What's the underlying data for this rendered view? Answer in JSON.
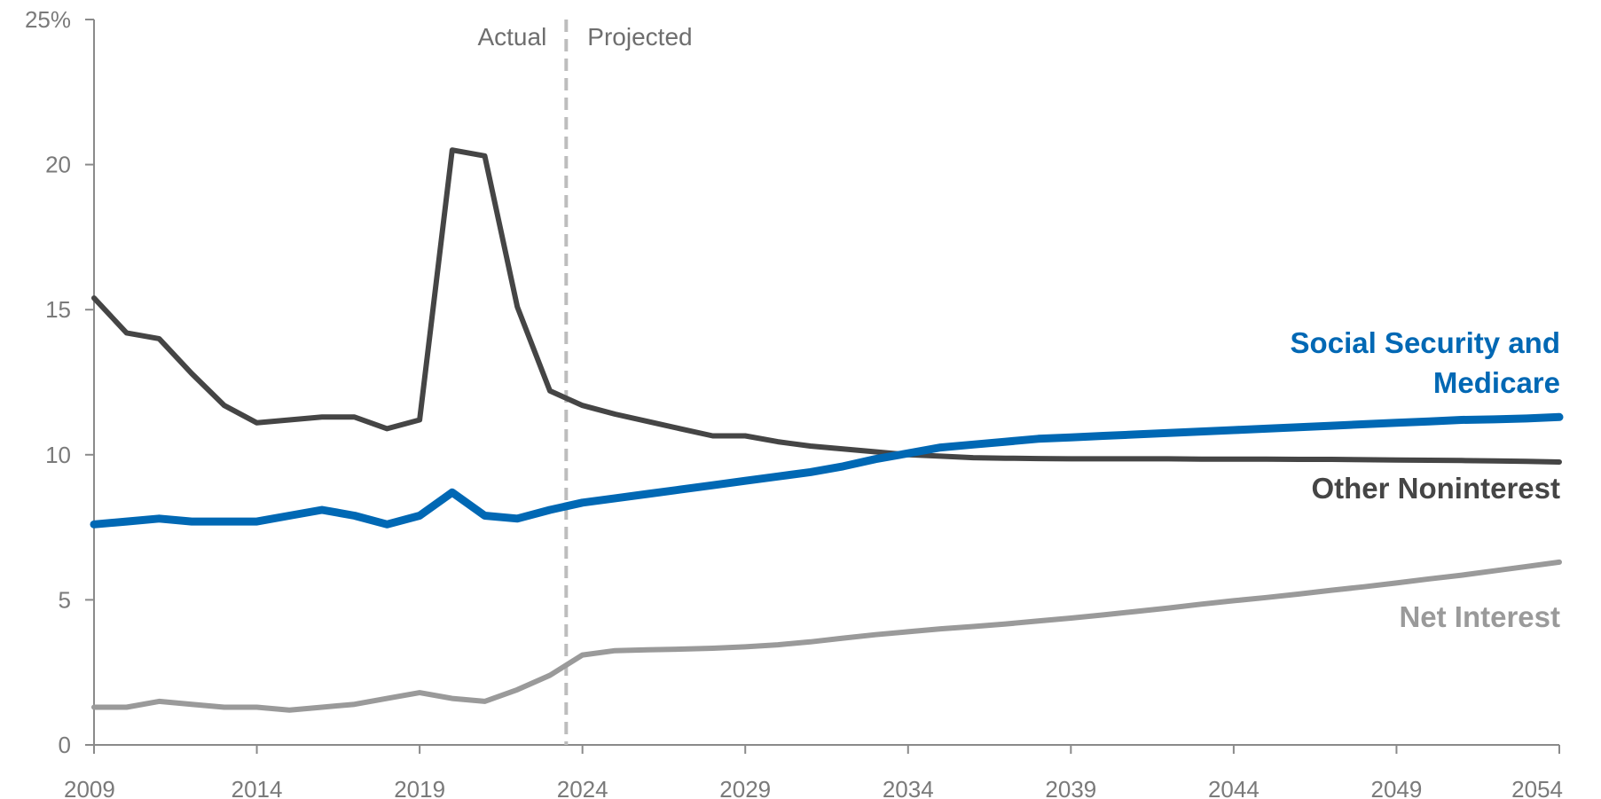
{
  "chart_data": {
    "type": "line",
    "title": "",
    "xlabel": "",
    "ylabel": "",
    "xlim": [
      2009,
      2054
    ],
    "ylim": [
      0,
      25
    ],
    "x_ticks": [
      2009,
      2014,
      2019,
      2024,
      2029,
      2034,
      2039,
      2044,
      2049,
      2054
    ],
    "x_tick_labels": [
      "2009",
      "2014",
      "2019",
      "2024",
      "2029",
      "2034",
      "2039",
      "2044",
      "2049",
      "2054"
    ],
    "y_ticks": [
      0,
      5,
      10,
      15,
      20,
      25
    ],
    "y_tick_labels": [
      "0",
      "5",
      "10",
      "15",
      "20",
      "25%"
    ],
    "grid": false,
    "divider": {
      "x": 2023.5,
      "left_label": "Actual",
      "right_label": "Projected"
    },
    "colors": {
      "social_security": "#0068b4",
      "other": "#454545",
      "net_interest": "#9a9a9a",
      "divider": "#bdbdbd",
      "axis": "#8a8a8a"
    },
    "series": [
      {
        "name": "Social Security and Medicare",
        "label_lines": [
          "Social Security and",
          "Medicare"
        ],
        "color": "#0068b4",
        "x": [
          2009,
          2010,
          2011,
          2012,
          2013,
          2014,
          2015,
          2016,
          2017,
          2018,
          2019,
          2020,
          2021,
          2022,
          2023,
          2024,
          2025,
          2026,
          2027,
          2028,
          2029,
          2030,
          2031,
          2032,
          2033,
          2034,
          2035,
          2036,
          2037,
          2038,
          2039,
          2040,
          2041,
          2042,
          2043,
          2044,
          2045,
          2046,
          2047,
          2048,
          2049,
          2050,
          2051,
          2052,
          2053,
          2054
        ],
        "values": [
          7.6,
          7.7,
          7.8,
          7.7,
          7.7,
          7.7,
          7.9,
          8.1,
          7.9,
          7.6,
          7.9,
          8.7,
          7.9,
          7.8,
          8.1,
          8.35,
          8.5,
          8.65,
          8.8,
          8.95,
          9.1,
          9.25,
          9.4,
          9.6,
          9.85,
          10.05,
          10.25,
          10.35,
          10.45,
          10.55,
          10.6,
          10.65,
          10.7,
          10.75,
          10.8,
          10.85,
          10.9,
          10.95,
          11.0,
          11.05,
          11.1,
          11.15,
          11.2,
          11.22,
          11.25,
          11.3
        ]
      },
      {
        "name": "Other Noninterest",
        "label_lines": [
          "Other Noninterest"
        ],
        "color": "#454545",
        "x": [
          2009,
          2010,
          2011,
          2012,
          2013,
          2014,
          2015,
          2016,
          2017,
          2018,
          2019,
          2020,
          2021,
          2022,
          2023,
          2024,
          2025,
          2026,
          2027,
          2028,
          2029,
          2030,
          2031,
          2032,
          2033,
          2034,
          2035,
          2036,
          2037,
          2038,
          2039,
          2040,
          2041,
          2042,
          2043,
          2044,
          2045,
          2046,
          2047,
          2048,
          2049,
          2050,
          2051,
          2052,
          2053,
          2054
        ],
        "values": [
          15.4,
          14.2,
          14.0,
          12.8,
          11.7,
          11.1,
          11.2,
          11.3,
          11.3,
          10.9,
          11.2,
          20.5,
          20.3,
          15.1,
          12.2,
          11.7,
          11.4,
          11.15,
          10.9,
          10.65,
          10.65,
          10.45,
          10.3,
          10.2,
          10.1,
          10.0,
          9.95,
          9.9,
          9.88,
          9.87,
          9.86,
          9.86,
          9.86,
          9.86,
          9.85,
          9.85,
          9.85,
          9.84,
          9.84,
          9.83,
          9.82,
          9.81,
          9.8,
          9.79,
          9.77,
          9.75
        ]
      },
      {
        "name": "Net Interest",
        "label_lines": [
          "Net Interest"
        ],
        "color": "#9a9a9a",
        "x": [
          2009,
          2010,
          2011,
          2012,
          2013,
          2014,
          2015,
          2016,
          2017,
          2018,
          2019,
          2020,
          2021,
          2022,
          2023,
          2024,
          2025,
          2026,
          2027,
          2028,
          2029,
          2030,
          2031,
          2032,
          2033,
          2034,
          2035,
          2036,
          2037,
          2038,
          2039,
          2040,
          2041,
          2042,
          2043,
          2044,
          2045,
          2046,
          2047,
          2048,
          2049,
          2050,
          2051,
          2052,
          2053,
          2054
        ],
        "values": [
          1.3,
          1.3,
          1.5,
          1.4,
          1.3,
          1.3,
          1.2,
          1.3,
          1.4,
          1.6,
          1.8,
          1.6,
          1.5,
          1.9,
          2.4,
          3.1,
          3.25,
          3.28,
          3.3,
          3.33,
          3.38,
          3.45,
          3.55,
          3.68,
          3.8,
          3.9,
          4.0,
          4.08,
          4.17,
          4.27,
          4.37,
          4.48,
          4.6,
          4.72,
          4.85,
          4.97,
          5.08,
          5.2,
          5.33,
          5.45,
          5.58,
          5.72,
          5.85,
          6.0,
          6.15,
          6.3
        ]
      }
    ]
  }
}
